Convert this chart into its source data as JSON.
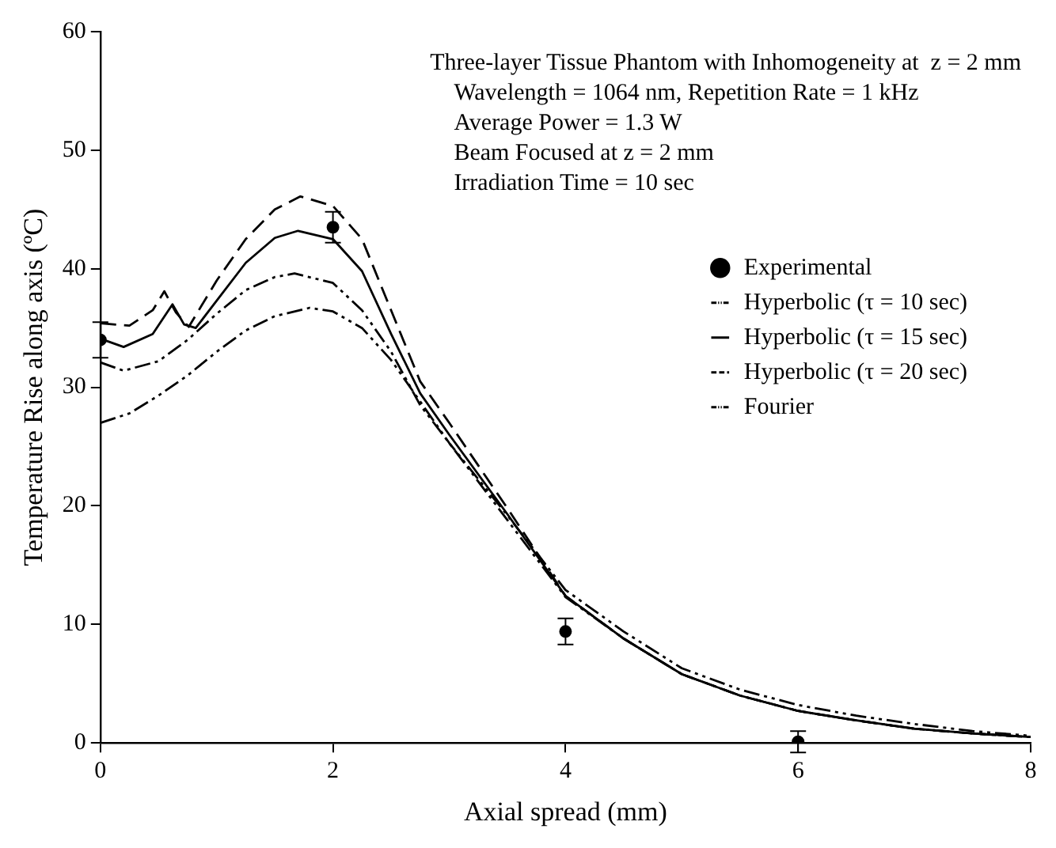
{
  "chart_data": {
    "type": "line",
    "xlabel": "Axial spread (mm)",
    "ylabel": "Temperature Rise along axis (ºC)",
    "annotations": [
      "Three-layer Tissue Phantom with Inhomogeneity at  z = 2 mm",
      "Wavelength = 1064 nm, Repetition Rate = 1 kHz",
      "Average Power = 1.3 W",
      "Beam Focused at z = 2 mm",
      "Irradiation Time = 10 sec"
    ],
    "xlim": [
      0,
      8
    ],
    "xticks": [
      0,
      2,
      4,
      6,
      8
    ],
    "ylim": [
      0,
      60
    ],
    "yticks": [
      0,
      10,
      20,
      30,
      40,
      50,
      60
    ],
    "grid": false,
    "legend": "right",
    "series": [
      {
        "name": "Experimental",
        "type": "scatter",
        "marker": "circle",
        "color": "#000000",
        "x": [
          0,
          2,
          4,
          6
        ],
        "values": [
          34,
          43.5,
          9.4,
          0.1
        ],
        "errors": [
          1.5,
          1.3,
          1.1,
          0.9
        ]
      },
      {
        "name": "Hyperbolic (τ = 10 sec)",
        "line_style": "dashdotdot",
        "color": "#000000",
        "x": [
          0,
          0.2,
          0.5,
          0.75,
          1,
          1.25,
          1.5,
          1.67,
          2,
          2.25,
          2.5,
          2.75,
          3,
          3.5,
          4,
          4.5,
          5,
          5.5,
          6,
          6.5,
          7,
          7.5,
          8
        ],
        "values": [
          32.1,
          31.4,
          32.2,
          34,
          36.2,
          38.2,
          39.3,
          39.6,
          38.8,
          36.5,
          33,
          28.5,
          25.3,
          18.8,
          12.3,
          8.8,
          5.8,
          4,
          2.7,
          1.9,
          1.2,
          0.8,
          0.5
        ]
      },
      {
        "name": "Hyperbolic (τ = 15 sec)",
        "line_style": "solid",
        "color": "#000000",
        "x": [
          0,
          0.2,
          0.45,
          0.62,
          0.72,
          0.82,
          1,
          1.25,
          1.5,
          1.7,
          2,
          2.25,
          2.5,
          2.75,
          3,
          3.5,
          4,
          4.5,
          5,
          5.5,
          6,
          6.5,
          7,
          7.5,
          8
        ],
        "values": [
          34.1,
          33.4,
          34.5,
          37,
          35.3,
          35,
          37.3,
          40.5,
          42.6,
          43.2,
          42.5,
          39.8,
          34.5,
          29.5,
          26,
          19.3,
          12.4,
          8.8,
          5.8,
          4,
          2.7,
          1.9,
          1.2,
          0.8,
          0.5
        ]
      },
      {
        "name": "Hyperbolic (τ = 20 sec)",
        "line_style": "dashed",
        "color": "#000000",
        "x": [
          0,
          0.25,
          0.45,
          0.55,
          0.65,
          0.76,
          1,
          1.25,
          1.5,
          1.72,
          2,
          2.25,
          2.5,
          2.75,
          3,
          3.5,
          4,
          4.5,
          5,
          5.5,
          6,
          6.5,
          7,
          7.5,
          8
        ],
        "values": [
          35.4,
          35.2,
          36.5,
          38.1,
          36.3,
          35.1,
          39,
          42.5,
          45,
          46.1,
          45.3,
          42.5,
          36.5,
          30.5,
          27,
          19.8,
          12.4,
          8.8,
          5.8,
          4,
          2.7,
          1.9,
          1.2,
          0.8,
          0.5
        ]
      },
      {
        "name": "Fourier",
        "line_style": "dashdotdot",
        "color": "#000000",
        "x": [
          0,
          0.25,
          0.5,
          0.75,
          1,
          1.25,
          1.5,
          1.8,
          2,
          2.25,
          2.5,
          2.75,
          3,
          3.5,
          4,
          4.5,
          5,
          5.5,
          6,
          6.5,
          7,
          7.5,
          8
        ],
        "values": [
          27,
          27.8,
          29.3,
          31,
          33,
          34.8,
          36,
          36.7,
          36.4,
          35,
          32.3,
          28.8,
          25.3,
          19.2,
          12.9,
          9.4,
          6.3,
          4.5,
          3.2,
          2.3,
          1.6,
          1,
          0.6
        ]
      }
    ]
  }
}
